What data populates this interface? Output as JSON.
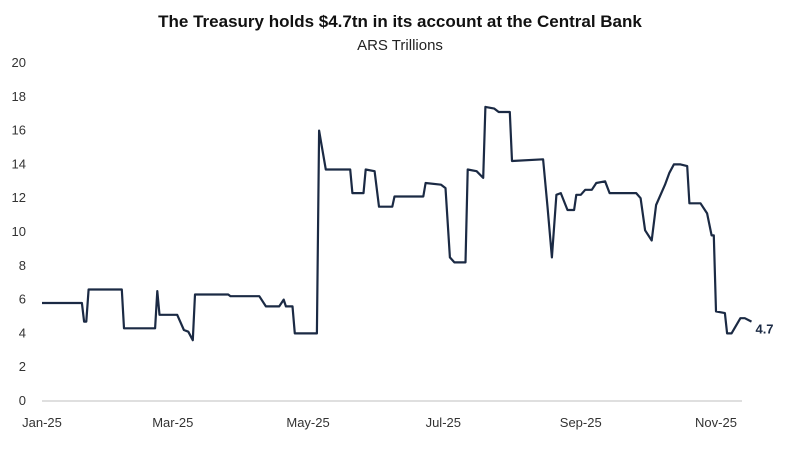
{
  "chart_data": {
    "type": "line",
    "title": "The Treasury holds $4.7tn in its account at the Central Bank",
    "subtitle": "ARS Trillions",
    "xlabel": "",
    "ylabel": "",
    "ylim": [
      0,
      20
    ],
    "yticks": [
      "0",
      "2",
      "4",
      "6",
      "8",
      "10",
      "12",
      "14",
      "16",
      "18",
      "20"
    ],
    "xticks": [
      {
        "label": "Jan-25",
        "date": "2025-01-01"
      },
      {
        "label": "Mar-25",
        "date": "2025-03-01"
      },
      {
        "label": "May-25",
        "date": "2025-05-01"
      },
      {
        "label": "Jul-25",
        "date": "2025-07-01"
      },
      {
        "label": "Sep-25",
        "date": "2025-09-01"
      },
      {
        "label": "Nov-25",
        "date": "2025-11-01"
      }
    ],
    "grid": false,
    "legend": "none",
    "line_color": "#1b2a44",
    "end_label": "4.7",
    "series": [
      {
        "points": [
          [
            "2025-01-01",
            5.8
          ],
          [
            "2025-01-19",
            5.8
          ],
          [
            "2025-01-20",
            4.7
          ],
          [
            "2025-01-21",
            4.7
          ],
          [
            "2025-01-22",
            6.6
          ],
          [
            "2025-02-06",
            6.6
          ],
          [
            "2025-02-07",
            4.3
          ],
          [
            "2025-02-21",
            4.3
          ],
          [
            "2025-02-22",
            6.5
          ],
          [
            "2025-02-23",
            5.1
          ],
          [
            "2025-03-03",
            5.1
          ],
          [
            "2025-03-06",
            4.2
          ],
          [
            "2025-03-08",
            4.1
          ],
          [
            "2025-03-10",
            3.6
          ],
          [
            "2025-03-11",
            6.3
          ],
          [
            "2025-03-26",
            6.3
          ],
          [
            "2025-03-27",
            6.2
          ],
          [
            "2025-04-09",
            6.2
          ],
          [
            "2025-04-12",
            5.6
          ],
          [
            "2025-04-18",
            5.6
          ],
          [
            "2025-04-20",
            6.0
          ],
          [
            "2025-04-21",
            5.6
          ],
          [
            "2025-04-24",
            5.6
          ],
          [
            "2025-04-25",
            4.0
          ],
          [
            "2025-05-05",
            4.0
          ],
          [
            "2025-05-06",
            16.0
          ],
          [
            "2025-05-07",
            15.2
          ],
          [
            "2025-05-09",
            13.7
          ],
          [
            "2025-05-20",
            13.7
          ],
          [
            "2025-05-21",
            12.3
          ],
          [
            "2025-05-26",
            12.3
          ],
          [
            "2025-05-27",
            13.7
          ],
          [
            "2025-05-31",
            13.6
          ],
          [
            "2025-06-02",
            11.5
          ],
          [
            "2025-06-08",
            11.5
          ],
          [
            "2025-06-09",
            12.1
          ],
          [
            "2025-06-22",
            12.1
          ],
          [
            "2025-06-23",
            12.9
          ],
          [
            "2025-06-30",
            12.8
          ],
          [
            "2025-07-02",
            12.6
          ],
          [
            "2025-07-04",
            8.5
          ],
          [
            "2025-07-06",
            8.2
          ],
          [
            "2025-07-11",
            8.2
          ],
          [
            "2025-07-12",
            13.7
          ],
          [
            "2025-07-16",
            13.6
          ],
          [
            "2025-07-19",
            13.2
          ],
          [
            "2025-07-20",
            17.4
          ],
          [
            "2025-07-24",
            17.3
          ],
          [
            "2025-07-26",
            17.1
          ],
          [
            "2025-07-31",
            17.1
          ],
          [
            "2025-08-01",
            14.2
          ],
          [
            "2025-08-15",
            14.3
          ],
          [
            "2025-08-17",
            11.5
          ],
          [
            "2025-08-19",
            8.5
          ],
          [
            "2025-08-21",
            12.2
          ],
          [
            "2025-08-23",
            12.3
          ],
          [
            "2025-08-26",
            11.3
          ],
          [
            "2025-08-29",
            11.3
          ],
          [
            "2025-08-30",
            12.2
          ],
          [
            "2025-09-01",
            12.2
          ],
          [
            "2025-09-03",
            12.5
          ],
          [
            "2025-09-06",
            12.5
          ],
          [
            "2025-09-08",
            12.9
          ],
          [
            "2025-09-12",
            13.0
          ],
          [
            "2025-09-14",
            12.3
          ],
          [
            "2025-09-26",
            12.3
          ],
          [
            "2025-09-28",
            12.0
          ],
          [
            "2025-09-30",
            10.1
          ],
          [
            "2025-10-03",
            9.5
          ],
          [
            "2025-10-05",
            11.6
          ],
          [
            "2025-10-09",
            12.8
          ],
          [
            "2025-10-11",
            13.5
          ],
          [
            "2025-10-13",
            14.0
          ],
          [
            "2025-10-16",
            14.0
          ],
          [
            "2025-10-19",
            13.9
          ],
          [
            "2025-10-20",
            11.7
          ],
          [
            "2025-10-25",
            11.7
          ],
          [
            "2025-10-28",
            11.1
          ],
          [
            "2025-10-30",
            9.8
          ],
          [
            "2025-10-31",
            9.8
          ],
          [
            "2025-11-01",
            5.3
          ],
          [
            "2025-11-05",
            5.2
          ],
          [
            "2025-11-06",
            4.0
          ],
          [
            "2025-11-08",
            4.0
          ],
          [
            "2025-11-12",
            4.9
          ],
          [
            "2025-11-14",
            4.9
          ],
          [
            "2025-11-17",
            4.7
          ]
        ]
      }
    ]
  }
}
